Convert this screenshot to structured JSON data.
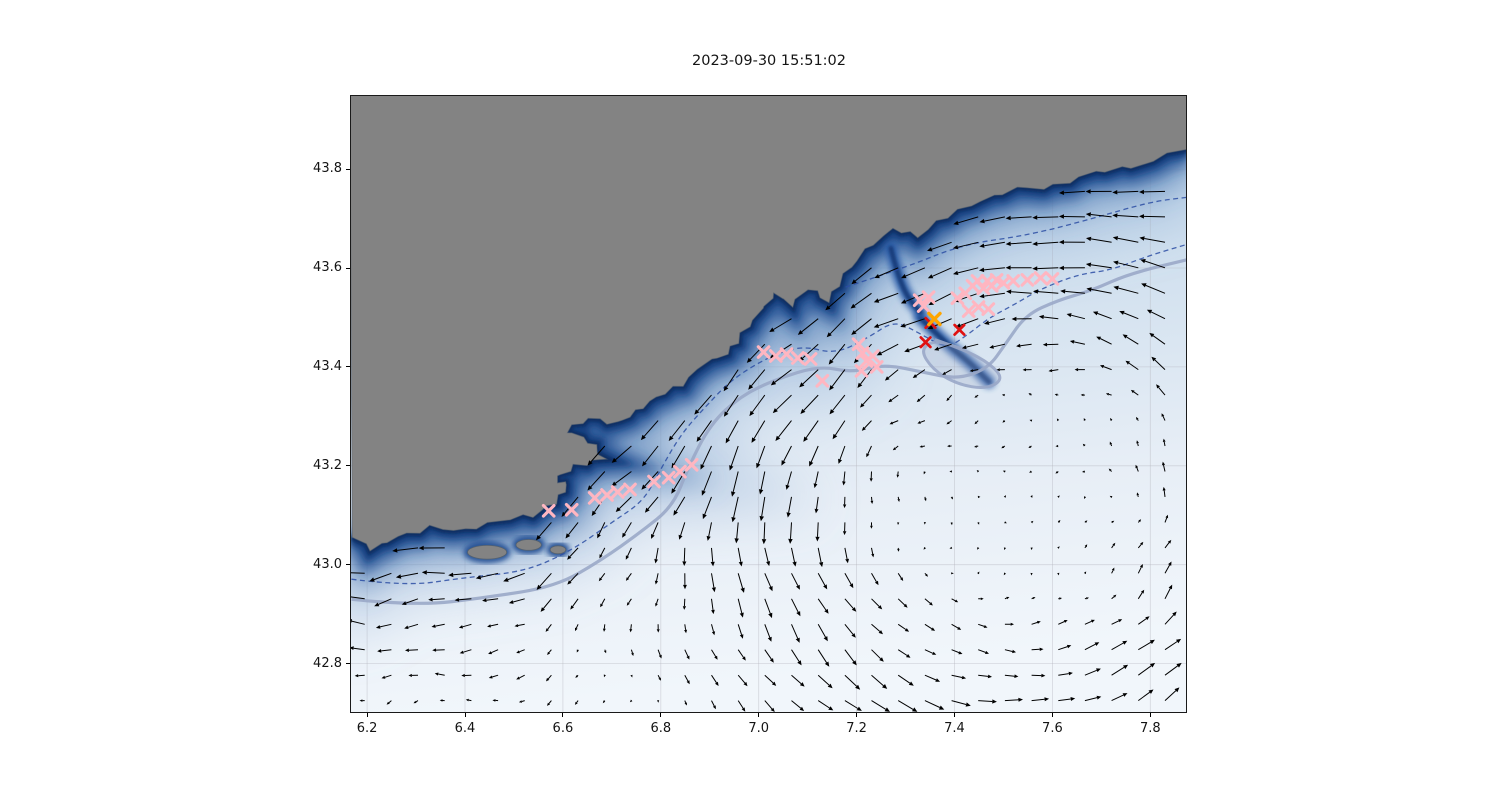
{
  "figure": {
    "title": "2023-09-30 15:51:02"
  },
  "chart_data": {
    "type": "map",
    "subtype": "coastal_bathymetry_with_current_quiver_and_markers",
    "title": "2023-09-30 15:51:02",
    "xlabel": "",
    "ylabel": "",
    "xlim": [
      6.165,
      7.875
    ],
    "ylim": [
      42.7,
      43.95
    ],
    "xticks": [
      "6.2",
      "6.4",
      "6.6",
      "6.8",
      "7.0",
      "7.2",
      "7.4",
      "7.6",
      "7.8"
    ],
    "yticks": [
      "42.8",
      "43.0",
      "43.2",
      "43.4",
      "43.6",
      "43.8"
    ],
    "grid": true,
    "colors": {
      "land": "#838383",
      "land_edge": "#55616f",
      "sea_gradient": [
        "#a9c5e1",
        "#cfdfee",
        "#e7eef6",
        "#f1f6fb"
      ],
      "slope_dark": "#0d2f63",
      "slope_mid": "#16407f",
      "slope_light": "#2a5ca8",
      "contour_dashed": "#2b4ea3",
      "contour_slate": "#9aa8c8",
      "quiver": "#000000",
      "marker_pink": "#ffb6c1",
      "marker_red": "#e01111",
      "marker_orange": "#ffa500",
      "grid_line": "rgba(178,178,186,0.45)"
    },
    "coastline": [
      [
        6.165,
        43.06
      ],
      [
        6.21,
        43.03
      ],
      [
        6.26,
        43.055
      ],
      [
        6.33,
        43.075
      ],
      [
        6.4,
        43.07
      ],
      [
        6.47,
        43.09
      ],
      [
        6.54,
        43.1
      ],
      [
        6.585,
        43.125
      ],
      [
        6.61,
        43.16
      ],
      [
        6.585,
        43.175
      ],
      [
        6.625,
        43.2
      ],
      [
        6.685,
        43.215
      ],
      [
        6.655,
        43.25
      ],
      [
        6.605,
        43.27
      ],
      [
        6.655,
        43.295
      ],
      [
        6.71,
        43.285
      ],
      [
        6.75,
        43.31
      ],
      [
        6.79,
        43.34
      ],
      [
        6.845,
        43.365
      ],
      [
        6.885,
        43.405
      ],
      [
        6.935,
        43.425
      ],
      [
        6.965,
        43.465
      ],
      [
        7.005,
        43.515
      ],
      [
        7.035,
        43.55
      ],
      [
        7.065,
        43.525
      ],
      [
        7.105,
        43.56
      ],
      [
        7.14,
        43.53
      ],
      [
        7.175,
        43.585
      ],
      [
        7.215,
        43.635
      ],
      [
        7.275,
        43.68
      ],
      [
        7.325,
        43.665
      ],
      [
        7.385,
        43.705
      ],
      [
        7.455,
        43.735
      ],
      [
        7.525,
        43.76
      ],
      [
        7.605,
        43.765
      ],
      [
        7.685,
        43.795
      ],
      [
        7.765,
        43.805
      ],
      [
        7.875,
        43.84
      ]
    ],
    "islands": [
      {
        "lon": 6.445,
        "lat": 43.025,
        "rx": 0.04,
        "ry": 0.014
      },
      {
        "lon": 6.53,
        "lat": 43.04,
        "rx": 0.026,
        "ry": 0.011
      },
      {
        "lon": 6.59,
        "lat": 43.03,
        "rx": 0.016,
        "ry": 0.008
      }
    ],
    "canyons": [
      [
        [
          7.33,
          43.5
        ],
        [
          7.38,
          43.45
        ],
        [
          7.43,
          43.41
        ],
        [
          7.47,
          43.37
        ]
      ],
      [
        [
          7.27,
          43.64
        ],
        [
          7.29,
          43.56
        ],
        [
          7.33,
          43.51
        ]
      ]
    ],
    "contours": {
      "dashed_navy_main": [
        [
          6.165,
          42.975
        ],
        [
          6.28,
          42.955
        ],
        [
          6.4,
          42.97
        ],
        [
          6.52,
          42.99
        ],
        [
          6.62,
          43.03
        ],
        [
          6.7,
          43.08
        ],
        [
          6.76,
          43.13
        ],
        [
          6.8,
          43.19
        ],
        [
          6.84,
          43.26
        ],
        [
          6.89,
          43.32
        ],
        [
          6.95,
          43.38
        ],
        [
          7.02,
          43.42
        ],
        [
          7.09,
          43.44
        ],
        [
          7.16,
          43.43
        ],
        [
          7.22,
          43.46
        ],
        [
          7.28,
          43.49
        ],
        [
          7.33,
          43.47
        ],
        [
          7.38,
          43.44
        ],
        [
          7.43,
          43.46
        ],
        [
          7.47,
          43.5
        ],
        [
          7.52,
          43.53
        ],
        [
          7.58,
          43.555
        ],
        [
          7.65,
          43.585
        ],
        [
          7.72,
          43.6
        ],
        [
          7.8,
          43.625
        ],
        [
          7.875,
          43.645
        ]
      ],
      "dashed_navy_upper": [
        [
          7.175,
          43.565
        ],
        [
          7.3,
          43.6
        ],
        [
          7.42,
          43.645
        ],
        [
          7.55,
          43.67
        ],
        [
          7.68,
          43.7
        ],
        [
          7.8,
          43.73
        ],
        [
          7.875,
          43.745
        ]
      ],
      "slate_thick": [
        [
          6.165,
          42.935
        ],
        [
          6.3,
          42.915
        ],
        [
          6.45,
          42.93
        ],
        [
          6.58,
          42.96
        ],
        [
          6.68,
          43.01
        ],
        [
          6.76,
          43.06
        ],
        [
          6.82,
          43.12
        ],
        [
          6.86,
          43.2
        ],
        [
          6.9,
          43.28
        ],
        [
          6.96,
          43.34
        ],
        [
          7.04,
          43.38
        ],
        [
          7.12,
          43.4
        ],
        [
          7.19,
          43.385
        ],
        [
          7.26,
          43.41
        ],
        [
          7.33,
          43.39
        ],
        [
          7.41,
          43.37
        ],
        [
          7.47,
          43.4
        ],
        [
          7.5,
          43.45
        ],
        [
          7.55,
          43.5
        ],
        [
          7.61,
          43.535
        ],
        [
          7.68,
          43.56
        ],
        [
          7.76,
          43.585
        ],
        [
          7.875,
          43.615
        ]
      ],
      "slate_loop": [
        [
          7.36,
          43.455
        ],
        [
          7.42,
          43.435
        ],
        [
          7.475,
          43.405
        ],
        [
          7.5,
          43.375
        ],
        [
          7.465,
          43.355
        ],
        [
          7.405,
          43.365
        ],
        [
          7.355,
          43.395
        ],
        [
          7.33,
          43.435
        ]
      ]
    },
    "quiver_field": {
      "grid_step_lon": 0.0545,
      "grid_step_lat": 0.0515,
      "gyre_center": [
        7.52,
        43.17
      ],
      "gyre_radius": 0.42,
      "coastal_jet_westward": true,
      "arrow_color": "#000000"
    },
    "markers": {
      "pink_x": {
        "color": "#ffb6c1",
        "points": [
          [
            6.571,
            43.109
          ],
          [
            6.618,
            43.111
          ],
          [
            6.665,
            43.135
          ],
          [
            6.69,
            43.141
          ],
          [
            6.712,
            43.147
          ],
          [
            6.737,
            43.152
          ],
          [
            6.786,
            43.168
          ],
          [
            6.816,
            43.176
          ],
          [
            6.839,
            43.188
          ],
          [
            6.863,
            43.202
          ],
          [
            7.01,
            43.43
          ],
          [
            7.035,
            43.422
          ],
          [
            7.057,
            43.426
          ],
          [
            7.08,
            43.418
          ],
          [
            7.106,
            43.416
          ],
          [
            7.13,
            43.372
          ],
          [
            7.204,
            43.446
          ],
          [
            7.212,
            43.428
          ],
          [
            7.22,
            43.412
          ],
          [
            7.233,
            43.422
          ],
          [
            7.21,
            43.392
          ],
          [
            7.241,
            43.4
          ],
          [
            7.329,
            43.535
          ],
          [
            7.337,
            43.523
          ],
          [
            7.347,
            43.541
          ],
          [
            7.406,
            43.539
          ],
          [
            7.422,
            43.549
          ],
          [
            7.437,
            43.564
          ],
          [
            7.447,
            43.574
          ],
          [
            7.459,
            43.559
          ],
          [
            7.467,
            43.574
          ],
          [
            7.476,
            43.564
          ],
          [
            7.486,
            43.576
          ],
          [
            7.5,
            43.57
          ],
          [
            7.52,
            43.574
          ],
          [
            7.549,
            43.576
          ],
          [
            7.576,
            43.58
          ],
          [
            7.6,
            43.578
          ],
          [
            7.429,
            43.513
          ],
          [
            7.449,
            43.521
          ],
          [
            7.469,
            43.517
          ]
        ]
      },
      "red_x": {
        "color": "#e01111",
        "points": [
          [
            7.341,
            43.45
          ],
          [
            7.351,
            43.489
          ],
          [
            7.41,
            43.475
          ]
        ]
      },
      "orange_x": {
        "color": "#ffa500",
        "points": [
          [
            7.359,
            43.497
          ]
        ]
      }
    }
  }
}
